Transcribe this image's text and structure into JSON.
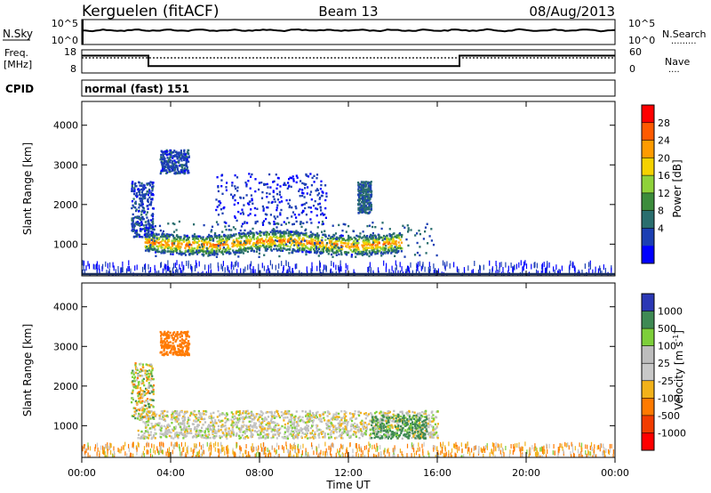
{
  "header": {
    "station": "Kerguelen (fitACF)",
    "beam": "Beam 13",
    "date": "08/Aug/2013"
  },
  "nsky_panel": {
    "left_label": "N.Sky",
    "right_label": "N.Search",
    "left_ticks": [
      "10^5",
      "10^0"
    ],
    "right_ticks": [
      "10^5",
      "10^0"
    ],
    "right_legend": "........."
  },
  "freq_panel": {
    "left_label_line1": "Freq.",
    "left_label_line2": "[MHz]",
    "left_ticks": [
      "18",
      "8"
    ],
    "right_ticks": [
      "60",
      "0"
    ],
    "right_label": "Nave",
    "right_legend": "....",
    "freq_levels": [
      {
        "start_hour": 0,
        "end_hour": 3,
        "level": 0.75
      },
      {
        "start_hour": 3,
        "end_hour": 17,
        "level": 0.3
      },
      {
        "start_hour": 17,
        "end_hour": 24,
        "level": 0.75
      }
    ]
  },
  "cpid": {
    "label": "CPID",
    "mode": "normal (fast) 151"
  },
  "x_axis": {
    "label": "Time UT",
    "ticks": [
      "00:00",
      "04:00",
      "08:00",
      "12:00",
      "16:00",
      "20:00",
      "00:00"
    ],
    "range_hours": [
      0,
      24
    ]
  },
  "chart_data": [
    {
      "type": "heatmap",
      "panel": "power",
      "ylabel": "Slant Range [km]",
      "yticks": [
        "1000",
        "2000",
        "3000",
        "4000"
      ],
      "ylim": [
        200,
        4600
      ],
      "colorbar_label": "Power [dB]",
      "colorbar_ticks": [
        "28",
        "24",
        "20",
        "16",
        "12",
        "8",
        "4"
      ],
      "colorbar_colors": [
        "#ff0000",
        "#ff5a00",
        "#ff9b00",
        "#f5d200",
        "#8fd23a",
        "#3c8c3c",
        "#2a6e6e",
        "#1c3fb3",
        "#0000ff"
      ],
      "features": [
        {
          "name": "main-echo",
          "hours": [
            2.8,
            14.4
          ],
          "range_km": [
            850,
            1350
          ],
          "peak_db": 28
        },
        {
          "name": "main-halo",
          "hours": [
            2.5,
            16.0
          ],
          "range_km": [
            700,
            1600
          ],
          "peak_db": 10
        },
        {
          "name": "early-plume",
          "hours": [
            2.2,
            3.2
          ],
          "range_km": [
            1200,
            2600
          ],
          "peak_db": 8
        },
        {
          "name": "upper-patch",
          "hours": [
            3.5,
            4.8
          ],
          "range_km": [
            2800,
            3400
          ],
          "peak_db": 8
        },
        {
          "name": "mid-patch",
          "hours": [
            6.0,
            11.0
          ],
          "range_km": [
            1500,
            2800
          ],
          "peak_db": 6
        },
        {
          "name": "patch-13h",
          "hours": [
            12.4,
            13.0
          ],
          "range_km": [
            1800,
            2600
          ],
          "peak_db": 10
        },
        {
          "name": "ground-band",
          "hours": [
            0,
            24
          ],
          "range_km": [
            250,
            600
          ],
          "peak_db": 6
        }
      ]
    },
    {
      "type": "heatmap",
      "panel": "velocity",
      "ylabel": "Slant Range [km]",
      "yticks": [
        "1000",
        "2000",
        "3000",
        "4000"
      ],
      "ylim": [
        200,
        4600
      ],
      "colorbar_label": "Velocity [m s",
      "colorbar_label_sup": "-1",
      "colorbar_label_end": "]",
      "colorbar_ticks": [
        "1000",
        "500",
        "100",
        "25",
        "-25",
        "-100",
        "-500",
        "-1000"
      ],
      "colorbar_colors": [
        "#2b38b5",
        "#3f8a54",
        "#7dcf3a",
        "#bdbdbd",
        "#c8c8c8",
        "#f2b21a",
        "#ff7a00",
        "#f23c00",
        "#ff0000"
      ],
      "features": [
        {
          "name": "main-echo",
          "hours": [
            2.5,
            16.0
          ],
          "range_km": [
            700,
            1400
          ],
          "dominant_ms": 0
        },
        {
          "name": "early-plume",
          "hours": [
            2.2,
            3.2
          ],
          "range_km": [
            1200,
            2600
          ],
          "dominant_ms": 0
        },
        {
          "name": "upper-patch",
          "hours": [
            3.5,
            4.8
          ],
          "range_km": [
            2800,
            3400
          ],
          "dominant_ms": -300
        },
        {
          "name": "green-patch",
          "hours": [
            13.0,
            15.5
          ],
          "range_km": [
            700,
            1300
          ],
          "dominant_ms": 200
        },
        {
          "name": "ground-band",
          "hours": [
            0,
            24
          ],
          "range_km": [
            250,
            600
          ],
          "dominant_ms": -80
        }
      ]
    }
  ]
}
